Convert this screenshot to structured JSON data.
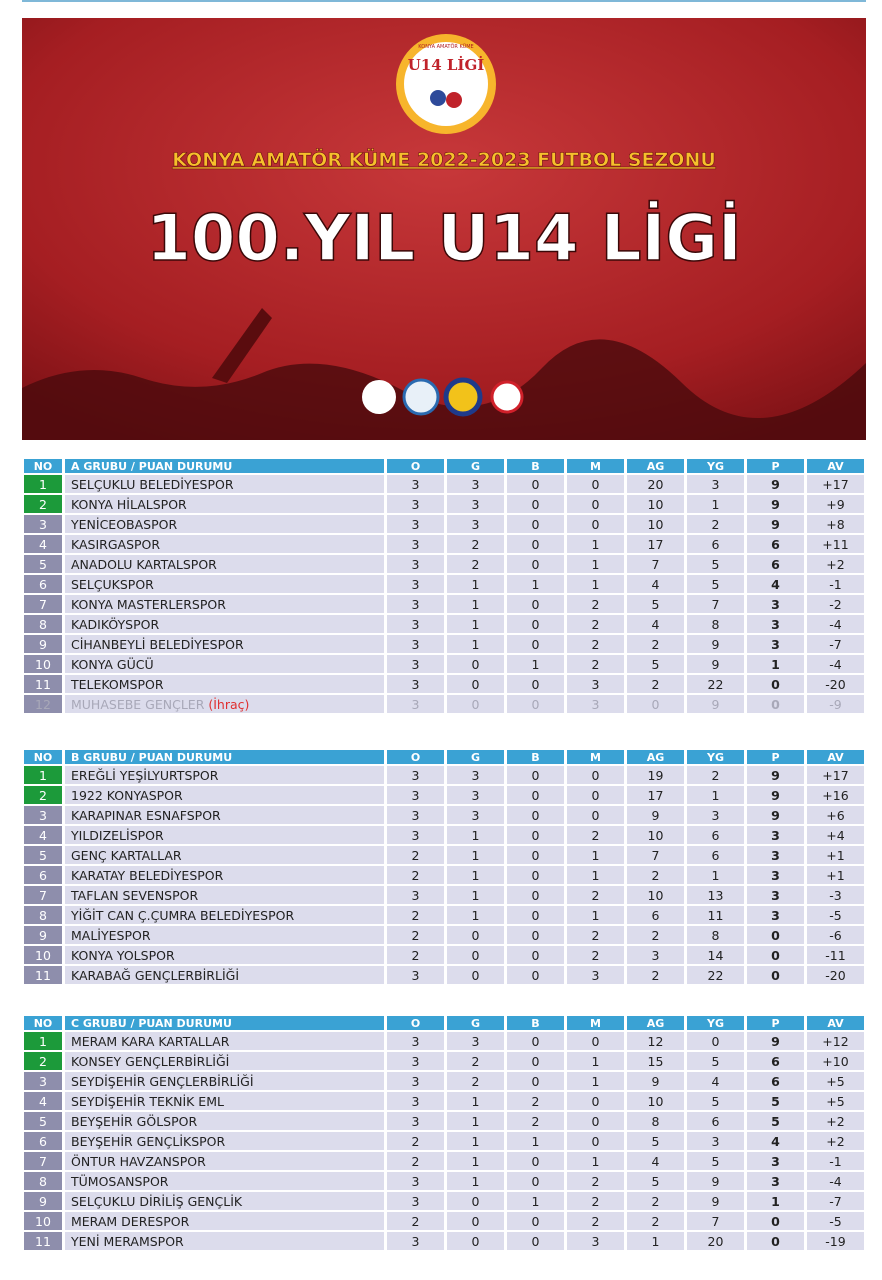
{
  "banner": {
    "logo_small": "KONYA AMATÖR KÜME",
    "logo_title": "U14 LİGİ",
    "season": "KONYA AMATÖR KÜME 2022-2023 FUTBOL SEZONU",
    "title": "100.YIL U14 LİGİ"
  },
  "tables": [
    {
      "header": [
        "NO",
        "A GRUBU / PUAN DURUMU",
        "O",
        "G",
        "B",
        "M",
        "AG",
        "YG",
        "P",
        "AV"
      ],
      "rows": [
        {
          "cells": [
            "1",
            "SELÇUKLU BELEDİYESPOR",
            "3",
            "3",
            "0",
            "0",
            "20",
            "3",
            "9",
            "+17"
          ]
        },
        {
          "cells": [
            "2",
            "KONYA HİLALSPOR",
            "3",
            "3",
            "0",
            "0",
            "10",
            "1",
            "9",
            "+9"
          ]
        },
        {
          "cells": [
            "3",
            "YENİCEOBASPOR",
            "3",
            "3",
            "0",
            "0",
            "10",
            "2",
            "9",
            "+8"
          ]
        },
        {
          "cells": [
            "4",
            "KASIRGASPOR",
            "3",
            "2",
            "0",
            "1",
            "17",
            "6",
            "6",
            "+11"
          ]
        },
        {
          "cells": [
            "5",
            "ANADOLU KARTALSPOR",
            "3",
            "2",
            "0",
            "1",
            "7",
            "5",
            "6",
            "+2"
          ]
        },
        {
          "cells": [
            "6",
            "SELÇUKSPOR",
            "3",
            "1",
            "1",
            "1",
            "4",
            "5",
            "4",
            "-1"
          ]
        },
        {
          "cells": [
            "7",
            "KONYA MASTERLERSPOR",
            "3",
            "1",
            "0",
            "2",
            "5",
            "7",
            "3",
            "-2"
          ]
        },
        {
          "cells": [
            "8",
            "KADIKÖYSPOR",
            "3",
            "1",
            "0",
            "2",
            "4",
            "8",
            "3",
            "-4"
          ]
        },
        {
          "cells": [
            "9",
            "CİHANBEYLİ BELEDİYESPOR",
            "3",
            "1",
            "0",
            "2",
            "2",
            "9",
            "3",
            "-7"
          ]
        },
        {
          "cells": [
            "10",
            "KONYA GÜCÜ",
            "3",
            "0",
            "1",
            "2",
            "5",
            "9",
            "1",
            "-4"
          ]
        },
        {
          "cells": [
            "11",
            "TELEKOMSPOR",
            "3",
            "0",
            "0",
            "3",
            "2",
            "22",
            "0",
            "-20"
          ]
        },
        {
          "cells": [
            "12",
            "MUHASEBE GENÇLER",
            "3",
            "0",
            "0",
            "3",
            "0",
            "9",
            "0",
            "-9"
          ],
          "note": "(İhraç)"
        }
      ]
    },
    {
      "header": [
        "NO",
        "B GRUBU / PUAN DURUMU",
        "O",
        "G",
        "B",
        "M",
        "AG",
        "YG",
        "P",
        "AV"
      ],
      "rows": [
        {
          "cells": [
            "1",
            "EREĞLİ YEŞİLYURTSPOR",
            "3",
            "3",
            "0",
            "0",
            "19",
            "2",
            "9",
            "+17"
          ]
        },
        {
          "cells": [
            "2",
            "1922 KONYASPOR",
            "3",
            "3",
            "0",
            "0",
            "17",
            "1",
            "9",
            "+16"
          ]
        },
        {
          "cells": [
            "3",
            "KARAPINAR ESNAFSPOR",
            "3",
            "3",
            "0",
            "0",
            "9",
            "3",
            "9",
            "+6"
          ]
        },
        {
          "cells": [
            "4",
            "YILDIZELİSPOR",
            "3",
            "1",
            "0",
            "2",
            "10",
            "6",
            "3",
            "+4"
          ]
        },
        {
          "cells": [
            "5",
            "GENÇ KARTALLAR",
            "2",
            "1",
            "0",
            "1",
            "7",
            "6",
            "3",
            "+1"
          ]
        },
        {
          "cells": [
            "6",
            "KARATAY BELEDİYESPOR",
            "2",
            "1",
            "0",
            "1",
            "2",
            "1",
            "3",
            "+1"
          ]
        },
        {
          "cells": [
            "7",
            "TAFLAN SEVENSPOR",
            "3",
            "1",
            "0",
            "2",
            "10",
            "13",
            "3",
            "-3"
          ]
        },
        {
          "cells": [
            "8",
            "YİĞİT CAN Ç.ÇUMRA BELEDİYESPOR",
            "2",
            "1",
            "0",
            "1",
            "6",
            "11",
            "3",
            "-5"
          ]
        },
        {
          "cells": [
            "9",
            "MALİYESPOR",
            "2",
            "0",
            "0",
            "2",
            "2",
            "8",
            "0",
            "-6"
          ]
        },
        {
          "cells": [
            "10",
            "KONYA YOLSPOR",
            "2",
            "0",
            "0",
            "2",
            "3",
            "14",
            "0",
            "-11"
          ]
        },
        {
          "cells": [
            "11",
            "KARABAĞ GENÇLERBİRLİĞİ",
            "3",
            "0",
            "0",
            "3",
            "2",
            "22",
            "0",
            "-20"
          ]
        }
      ]
    },
    {
      "header": [
        "NO",
        "C GRUBU / PUAN DURUMU",
        "O",
        "G",
        "B",
        "M",
        "AG",
        "YG",
        "P",
        "AV"
      ],
      "rows": [
        {
          "cells": [
            "1",
            "MERAM KARA KARTALLAR",
            "3",
            "3",
            "0",
            "0",
            "12",
            "0",
            "9",
            "+12"
          ]
        },
        {
          "cells": [
            "2",
            "KONSEY GENÇLERBİRLİĞİ",
            "3",
            "2",
            "0",
            "1",
            "15",
            "5",
            "6",
            "+10"
          ]
        },
        {
          "cells": [
            "3",
            "SEYDİŞEHİR GENÇLERBİRLİĞİ",
            "3",
            "2",
            "0",
            "1",
            "9",
            "4",
            "6",
            "+5"
          ]
        },
        {
          "cells": [
            "4",
            "SEYDİŞEHİR TEKNİK EML",
            "3",
            "1",
            "2",
            "0",
            "10",
            "5",
            "5",
            "+5"
          ]
        },
        {
          "cells": [
            "5",
            "BEYŞEHİR GÖLSPOR",
            "3",
            "1",
            "2",
            "0",
            "8",
            "6",
            "5",
            "+2"
          ]
        },
        {
          "cells": [
            "6",
            "BEYŞEHİR GENÇLİKSPOR",
            "2",
            "1",
            "1",
            "0",
            "5",
            "3",
            "4",
            "+2"
          ]
        },
        {
          "cells": [
            "7",
            "ÖNTUR HAVZANSPOR",
            "2",
            "1",
            "0",
            "1",
            "4",
            "5",
            "3",
            "-1"
          ]
        },
        {
          "cells": [
            "8",
            "TÜMOSANSPOR",
            "3",
            "1",
            "0",
            "2",
            "5",
            "9",
            "3",
            "-4"
          ]
        },
        {
          "cells": [
            "9",
            "SELÇUKLU DİRİLİŞ GENÇLİK",
            "3",
            "0",
            "1",
            "2",
            "2",
            "9",
            "1",
            "-7"
          ]
        },
        {
          "cells": [
            "10",
            "MERAM DERESPOR",
            "2",
            "0",
            "0",
            "2",
            "2",
            "7",
            "0",
            "-5"
          ]
        },
        {
          "cells": [
            "11",
            "YENİ MERAMSPOR",
            "3",
            "0",
            "0",
            "3",
            "1",
            "20",
            "0",
            "-19"
          ]
        }
      ]
    }
  ]
}
